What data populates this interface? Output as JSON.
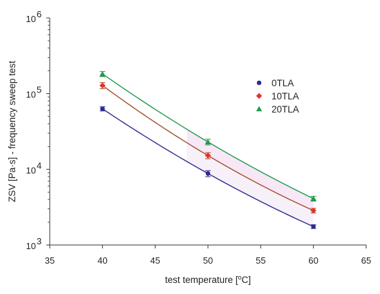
{
  "chart_data": {
    "type": "scatter",
    "xlabel": "test temperature [°C]",
    "ylabel": "ZSV [Pa·s] - frequency sweep test",
    "xlim": [
      35,
      65
    ],
    "ylim": [
      1000,
      1000000
    ],
    "yscale": "log",
    "x_ticks": [
      "35",
      "40",
      "45",
      "50",
      "55",
      "60",
      "65"
    ],
    "y_ticks": [
      {
        "value": 1000,
        "base": "10",
        "exp": "3"
      },
      {
        "value": 10000,
        "base": "10",
        "exp": "4"
      },
      {
        "value": 100000,
        "base": "10",
        "exp": "5"
      },
      {
        "value": 1000000,
        "base": "10",
        "exp": "6"
      }
    ],
    "legend_position": "top-right",
    "grid": false,
    "series": [
      {
        "name": "0TLA",
        "marker": "circle",
        "color": "#2e2a8f",
        "line_color": "#2e2a8f",
        "x": [
          40,
          50,
          60
        ],
        "y": [
          63000,
          8800,
          1750
        ],
        "err": [
          4000,
          800,
          100
        ]
      },
      {
        "name": "10TLA",
        "marker": "diamond",
        "color": "#e8312a",
        "line_color": "#a0502a",
        "x": [
          40,
          50,
          60
        ],
        "y": [
          128000,
          15200,
          2850
        ],
        "err": [
          12000,
          1400,
          200
        ]
      },
      {
        "name": "20TLA",
        "marker": "triangle",
        "color": "#1f9a4e",
        "line_color": "#1f9a4e",
        "x": [
          40,
          50,
          60
        ],
        "y": [
          182000,
          23000,
          4100
        ],
        "err": [
          14000,
          2000,
          300
        ]
      }
    ]
  }
}
